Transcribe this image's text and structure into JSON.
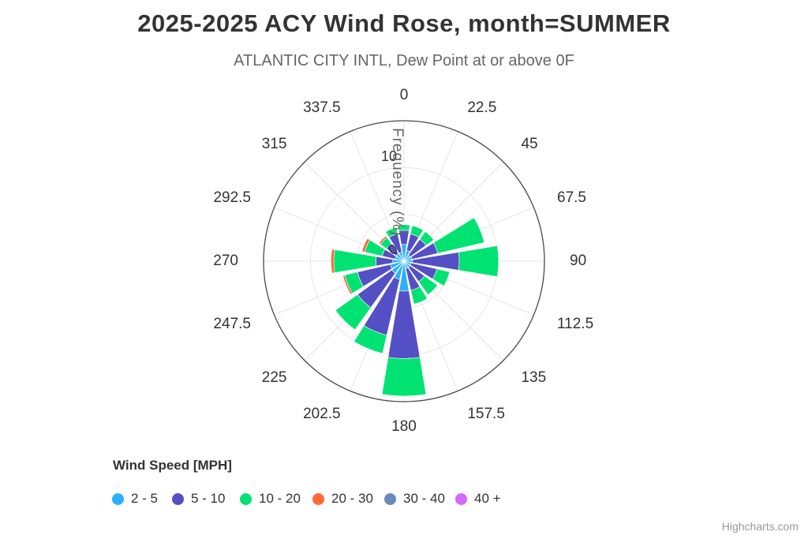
{
  "title": "2025-2025 ACY Wind Rose, month=SUMMER",
  "subtitle": "ATLANTIC CITY INTL, Dew Point at or above 0F",
  "credit": "Highcharts.com",
  "legend": {
    "title": "Wind Speed [MPH]",
    "items": [
      {
        "label": "2 - 5",
        "color": "#2CAFFE"
      },
      {
        "label": "5 - 10",
        "color": "#544FC5"
      },
      {
        "label": "10 - 20",
        "color": "#00E272"
      },
      {
        "label": "20 - 30",
        "color": "#FE6A35"
      },
      {
        "label": "30 - 40",
        "color": "#6B8ABC"
      },
      {
        "label": "40 +",
        "color": "#D568FB"
      }
    ]
  },
  "chart_data": {
    "type": "bar",
    "subtype": "polar-stacked-wind-rose",
    "units": "percent frequency",
    "categories": [
      "0",
      "22.5",
      "45",
      "67.5",
      "90",
      "112.5",
      "135",
      "157.5",
      "180",
      "202.5",
      "225",
      "247.5",
      "270",
      "292.5",
      "315",
      "337.5"
    ],
    "series": [
      {
        "name": "2 - 5",
        "color": "#2CAFFE",
        "values": [
          1.8,
          1.2,
          0.8,
          0.9,
          0.9,
          0.8,
          0.8,
          0.8,
          3.2,
          2.0,
          1.6,
          1.5,
          1.2,
          1.0,
          1.0,
          1.0
        ]
      },
      {
        "name": "5 - 10",
        "color": "#544FC5",
        "values": [
          1.5,
          1.8,
          2.1,
          2.8,
          5.0,
          2.8,
          1.9,
          2.4,
          7.2,
          6.1,
          4.5,
          3.6,
          1.8,
          1.4,
          1.3,
          2.0
        ]
      },
      {
        "name": "10 - 20",
        "color": "#00E272",
        "values": [
          0.6,
          0.9,
          1.0,
          5.1,
          4.2,
          1.4,
          1.7,
          1.5,
          4.0,
          2.0,
          2.9,
          1.4,
          4.5,
          1.9,
          0.8,
          0.7
        ]
      },
      {
        "name": "20 - 30",
        "color": "#FE6A35",
        "values": [
          0,
          0,
          0,
          0,
          0,
          0,
          0,
          0,
          0,
          0,
          0,
          0.2,
          0.3,
          0.3,
          0.2,
          0
        ]
      },
      {
        "name": "30 - 40",
        "color": "#6B8ABC",
        "values": [
          0,
          0,
          0,
          0,
          0,
          0,
          0,
          0,
          0,
          0,
          0,
          0,
          0,
          0,
          0,
          0
        ]
      },
      {
        "name": "40 +",
        "color": "#D568FB",
        "values": [
          0,
          0,
          0,
          0,
          0,
          0,
          0,
          0,
          0,
          0,
          0,
          0,
          0,
          0,
          0,
          0
        ]
      }
    ],
    "radial_axis": {
      "title": "Frequency (%)",
      "tick_labels": [
        "0",
        "10"
      ],
      "rings": [
        5,
        10,
        15
      ],
      "min": 0,
      "max": 15
    },
    "angular_axis_note": "0 at top (north), labels every 22.5 degrees clockwise",
    "grid": true,
    "legend_position": "bottom-left"
  }
}
